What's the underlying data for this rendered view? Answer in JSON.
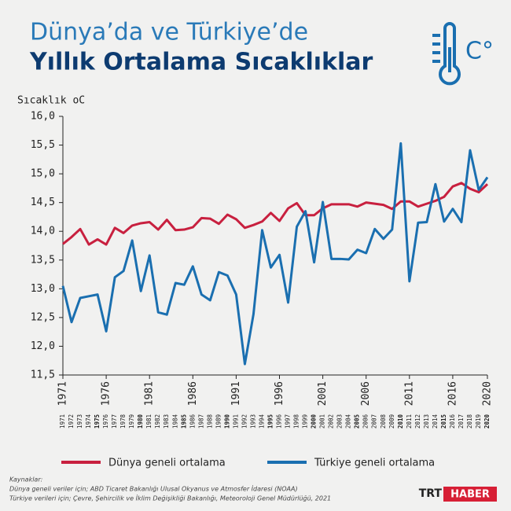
{
  "header": {
    "title_line1": "Dünya’da ve Türkiye’de",
    "title_line2": "Yıllık Ortalama Sıcaklıklar",
    "icon_label": "C°"
  },
  "chart_data": {
    "type": "line",
    "y_label": "Sıcaklık  oC",
    "x": [
      1971,
      1972,
      1973,
      1974,
      1975,
      1976,
      1977,
      1978,
      1979,
      1980,
      1981,
      1982,
      1983,
      1984,
      1985,
      1986,
      1987,
      1988,
      1989,
      1990,
      1991,
      1992,
      1993,
      1994,
      1995,
      1996,
      1997,
      1998,
      1999,
      2000,
      2001,
      2002,
      2003,
      2004,
      2005,
      2006,
      2007,
      2008,
      2009,
      2010,
      2011,
      2012,
      2013,
      2014,
      2015,
      2016,
      2017,
      2018,
      2019,
      2020
    ],
    "xlim": [
      1971,
      2020
    ],
    "xticks": [
      1971,
      1976,
      1981,
      1986,
      1991,
      1996,
      2001,
      2006,
      2011,
      2016,
      2020
    ],
    "ylim": [
      11.5,
      16
    ],
    "yticks": [
      {
        "value": 11.5,
        "label": "11,5"
      },
      {
        "value": 12,
        "label": "12,0"
      },
      {
        "value": 12.5,
        "label": "12,5"
      },
      {
        "value": 13,
        "label": "13,0"
      },
      {
        "value": 13.5,
        "label": "13,5"
      },
      {
        "value": 14,
        "label": "14,0"
      },
      {
        "value": 14.5,
        "label": "14,5"
      },
      {
        "value": 15,
        "label": "15,0"
      },
      {
        "value": 15.5,
        "label": "15,5"
      },
      {
        "value": 16,
        "label": "16,0"
      }
    ],
    "series": [
      {
        "name": "Dünya geneli ortalama",
        "color": "#c8203f",
        "values": [
          13.78,
          13.9,
          14.04,
          13.77,
          13.86,
          13.77,
          14.06,
          13.97,
          14.1,
          14.14,
          14.16,
          14.03,
          14.2,
          14.02,
          14.03,
          14.07,
          14.23,
          14.22,
          14.13,
          14.29,
          14.21,
          14.06,
          14.11,
          14.17,
          14.32,
          14.18,
          14.4,
          14.49,
          14.28,
          14.28,
          14.4,
          14.47,
          14.47,
          14.47,
          14.43,
          14.5,
          14.48,
          14.46,
          14.39,
          14.52,
          14.52,
          14.43,
          14.48,
          14.53,
          14.6,
          14.78,
          14.84,
          14.74,
          14.68,
          14.82
        ]
      },
      {
        "name": "Türkiye geneli ortalama",
        "color": "#1a6fb0",
        "values": [
          13.05,
          12.42,
          12.84,
          12.87,
          12.9,
          12.26,
          13.2,
          13.31,
          13.84,
          12.96,
          13.58,
          12.59,
          12.55,
          13.1,
          13.07,
          13.39,
          12.9,
          12.8,
          13.29,
          13.23,
          12.9,
          11.69,
          12.56,
          14.02,
          13.37,
          13.59,
          12.76,
          14.08,
          14.35,
          13.46,
          14.51,
          13.52,
          13.52,
          13.51,
          13.68,
          13.62,
          14.04,
          13.87,
          14.03,
          15.53,
          13.13,
          14.15,
          14.16,
          14.82,
          14.17,
          14.39,
          14.16,
          15.41,
          14.72,
          14.94
        ]
      }
    ]
  },
  "sources": {
    "heading": "Kaynaklar:",
    "line1": "Dünya geneli veriler için; ABD Ticaret Bakanlığı Ulusal Okyanus ve Atmosfer İdaresi (NOAA)",
    "line2": "Türkiye verileri için; Çevre, Şehircilik ve İklim Değişikliği Bakanlığı, Meteoroloji Genel Müdürlüğü, 2021"
  },
  "logo": {
    "left": "TRT",
    "right": "HABER"
  }
}
